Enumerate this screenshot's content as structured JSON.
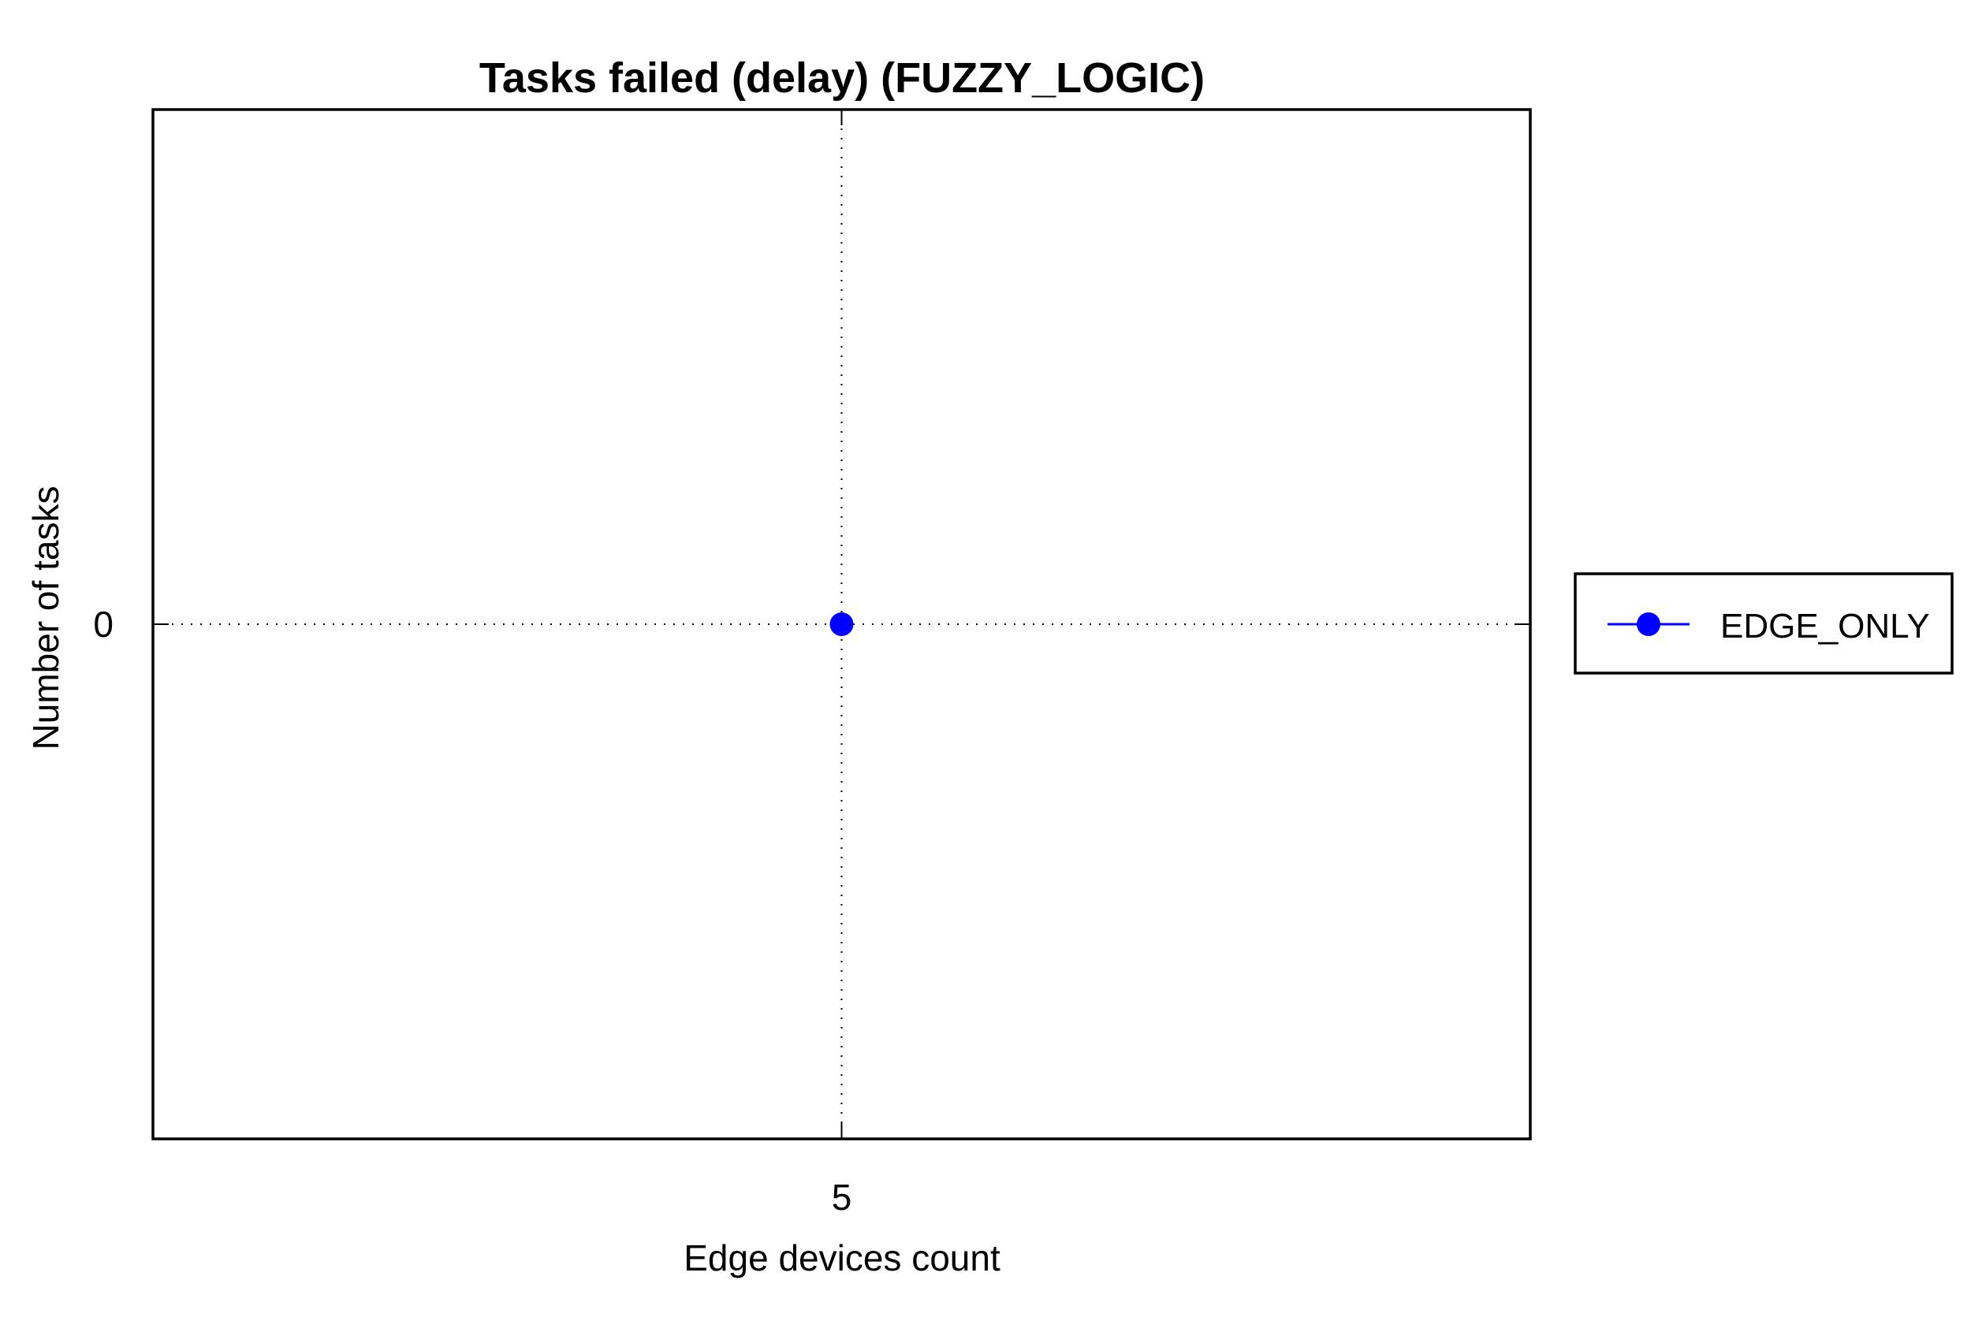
{
  "chart_data": {
    "type": "line",
    "title": "Tasks failed (delay) (FUZZY_LOGIC)",
    "xlabel": "Edge devices count",
    "ylabel": "Number of tasks",
    "x": [
      5
    ],
    "xticks": [
      "5"
    ],
    "yticks": [
      "0"
    ],
    "xlim": [
      4,
      6
    ],
    "ylim": [
      -1,
      1
    ],
    "grid": true,
    "legend_position": "outside-right",
    "series": [
      {
        "name": "EDGE_ONLY",
        "x": [
          5
        ],
        "values": [
          0
        ],
        "color": "#0000ff",
        "marker": "circle"
      }
    ]
  }
}
